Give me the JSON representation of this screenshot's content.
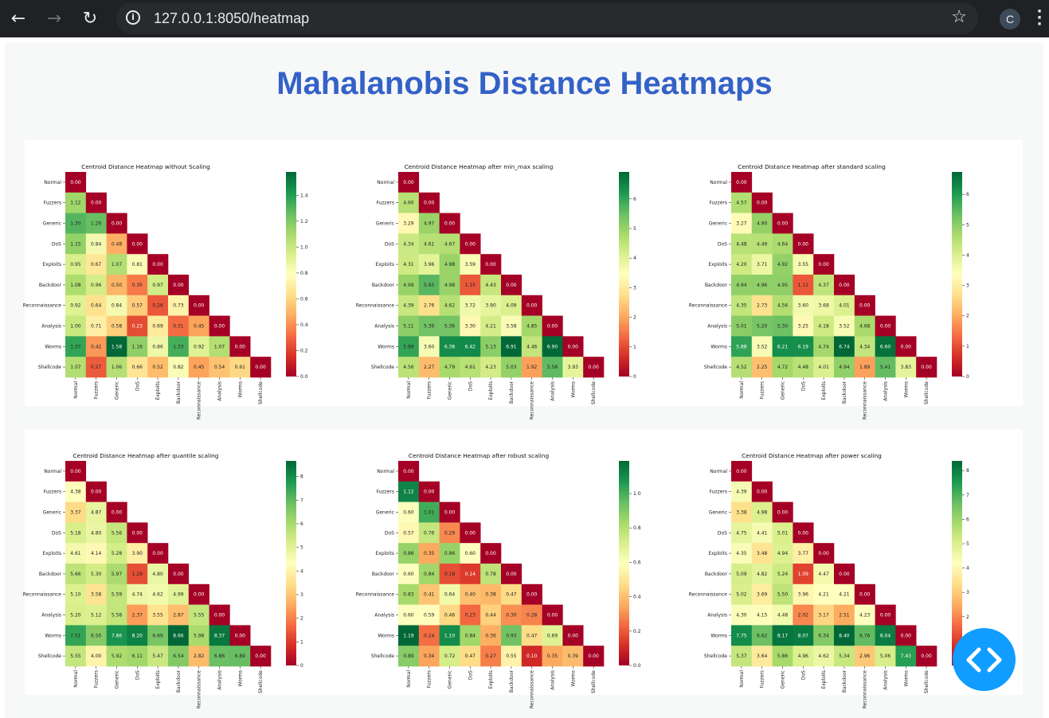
{
  "browser": {
    "url": "127.0.0.1:8050/heatmap",
    "profile_initial": "C",
    "icons": [
      "back-arrow-icon",
      "forward-arrow-icon",
      "reload-icon",
      "info-icon",
      "star-icon",
      "kebab-menu-icon"
    ]
  },
  "page": {
    "title": "Mahalanobis Distance Heatmaps"
  },
  "colors": {
    "title": "#3362c7",
    "fab": "#119dff",
    "low": "#a50026",
    "mid": "#feffbe",
    "high": "#006837"
  },
  "labels": [
    "Normal",
    "Fuzzers",
    "Generic",
    "DoS",
    "Exploits",
    "Backdoor",
    "Reconnaissance",
    "Analysis",
    "Worms",
    "Shellcode"
  ],
  "heatmaps": [
    {
      "title": "Centroid Distance Heatmap without Scaling",
      "vmax": 1.58,
      "ticks": [
        "0.0",
        "0.2",
        "0.4",
        "0.6",
        "0.8",
        "1.0",
        "1.2",
        "1.4"
      ],
      "rows": [
        [
          0.0
        ],
        [
          1.12,
          0.0
        ],
        [
          1.3,
          1.26,
          0.0
        ],
        [
          1.15,
          0.84,
          0.48,
          0.0
        ],
        [
          0.95,
          0.67,
          1.07,
          0.81,
          0.0
        ],
        [
          1.08,
          0.96,
          0.5,
          0.35,
          0.97,
          0.0
        ],
        [
          0.92,
          0.64,
          0.84,
          0.57,
          0.26,
          0.73,
          0.0
        ],
        [
          1.0,
          0.71,
          0.58,
          0.23,
          0.69,
          0.31,
          0.45,
          0.0
        ],
        [
          1.37,
          0.42,
          1.58,
          1.16,
          0.86,
          1.33,
          0.92,
          1.07,
          0.0
        ],
        [
          1.07,
          0.27,
          1.06,
          0.66,
          0.52,
          0.82,
          0.45,
          0.54,
          0.61,
          0.0
        ]
      ]
    },
    {
      "title": "Centroid Distance Heatmap after min_max scaling",
      "vmax": 6.91,
      "ticks": [
        "0",
        "1",
        "2",
        "3",
        "4",
        "5",
        "6"
      ],
      "rows": [
        [
          0.0
        ],
        [
          4.6,
          0.0
        ],
        [
          3.29,
          4.97,
          0.0
        ],
        [
          4.34,
          4.61,
          4.67,
          0.0
        ],
        [
          4.31,
          3.96,
          4.98,
          3.59,
          0.0
        ],
        [
          4.99,
          5.65,
          4.98,
          1.15,
          4.43,
          0.0
        ],
        [
          4.39,
          2.76,
          4.62,
          3.72,
          3.9,
          4.09,
          0.0
        ],
        [
          5.11,
          5.39,
          5.36,
          3.3,
          4.21,
          3.58,
          4.85,
          0.0
        ],
        [
          5.99,
          3.6,
          6.38,
          6.42,
          5.13,
          6.91,
          4.46,
          6.9,
          0.0
        ],
        [
          4.56,
          2.27,
          4.79,
          4.61,
          4.23,
          5.03,
          1.92,
          5.58,
          3.93,
          0.0
        ]
      ]
    },
    {
      "title": "Centroid Distance Heatmap after standard scaling",
      "vmax": 6.74,
      "ticks": [
        "0",
        "1",
        "2",
        "3",
        "4",
        "5",
        "6"
      ],
      "rows": [
        [
          0.0
        ],
        [
          4.57,
          0.0
        ],
        [
          3.27,
          4.9,
          0.0
        ],
        [
          4.48,
          4.49,
          4.64,
          0.0
        ],
        [
          4.2,
          3.71,
          4.92,
          3.55,
          0.0
        ],
        [
          4.94,
          4.96,
          4.95,
          1.11,
          4.37,
          0.0
        ],
        [
          4.35,
          2.73,
          4.56,
          3.6,
          3.68,
          4.01,
          0.0
        ],
        [
          5.01,
          5.2,
          5.3,
          3.25,
          4.18,
          3.52,
          4.68,
          0.0
        ],
        [
          5.88,
          3.52,
          6.21,
          6.19,
          4.74,
          6.74,
          4.34,
          6.6,
          0.0
        ],
        [
          4.52,
          2.25,
          4.72,
          4.48,
          4.01,
          4.94,
          1.89,
          5.41,
          3.83,
          0.0
        ]
      ]
    },
    {
      "title": "Centroid Distance Heatmap after quantile scaling",
      "vmax": 8.66,
      "ticks": [
        "0",
        "1",
        "2",
        "3",
        "4",
        "5",
        "6",
        "7",
        "8"
      ],
      "rows": [
        [
          0.0
        ],
        [
          4.38,
          0.0
        ],
        [
          3.37,
          4.87,
          0.0
        ],
        [
          5.18,
          4.8,
          5.56,
          0.0
        ],
        [
          4.61,
          4.14,
          5.28,
          3.9,
          0.0
        ],
        [
          5.66,
          5.3,
          5.97,
          1.29,
          4.8,
          0.0
        ],
        [
          5.1,
          3.58,
          5.59,
          4.74,
          4.62,
          4.99,
          0.0
        ],
        [
          5.2,
          5.12,
          5.58,
          2.37,
          3.55,
          2.87,
          5.55,
          0.0
        ],
        [
          7.51,
          6.5,
          7.86,
          8.2,
          6.69,
          8.66,
          5.98,
          8.37,
          0.0
        ],
        [
          5.55,
          4.0,
          5.92,
          6.11,
          5.47,
          6.54,
          2.82,
          6.86,
          6.89,
          0.0
        ]
      ]
    },
    {
      "title": "Centroid Distance Heatmap after robust scaling",
      "vmax": 1.19,
      "ticks": [
        "0.0",
        "0.2",
        "0.4",
        "0.6",
        "0.8",
        "1.0"
      ],
      "rows": [
        [
          0.0
        ],
        [
          1.12,
          0.0
        ],
        [
          0.6,
          1.01,
          0.0
        ],
        [
          0.57,
          0.76,
          0.29,
          0.0
        ],
        [
          0.86,
          0.35,
          0.86,
          0.6,
          0.0
        ],
        [
          0.6,
          0.84,
          0.18,
          0.14,
          0.78,
          0.0
        ],
        [
          0.83,
          0.41,
          0.64,
          0.4,
          0.38,
          0.47,
          0.0
        ],
        [
          0.6,
          0.59,
          0.46,
          0.23,
          0.44,
          0.3,
          0.28,
          0.0
        ],
        [
          1.19,
          0.24,
          1.1,
          0.84,
          0.36,
          0.93,
          0.47,
          0.69,
          0.0
        ],
        [
          0.89,
          0.34,
          0.72,
          0.47,
          0.27,
          0.55,
          0.1,
          0.35,
          0.39,
          0.0
        ]
      ]
    },
    {
      "title": "Centroid Distance Heatmap after power scaling",
      "vmax": 8.4,
      "ticks": [
        "0",
        "1",
        "2",
        "3",
        "4",
        "5",
        "6",
        "7",
        "8"
      ],
      "rows": [
        [
          0.0
        ],
        [
          4.39,
          0.0
        ],
        [
          3.38,
          4.98,
          0.0
        ],
        [
          4.75,
          4.41,
          5.01,
          0.0
        ],
        [
          4.35,
          3.48,
          4.94,
          3.77,
          0.0
        ],
        [
          5.09,
          4.82,
          5.24,
          1.09,
          4.47,
          0.0
        ],
        [
          5.02,
          3.69,
          5.5,
          3.96,
          4.21,
          4.21,
          0.0
        ],
        [
          4.3,
          4.15,
          4.48,
          2.02,
          3.17,
          2.51,
          4.23,
          0.0
        ],
        [
          7.75,
          6.62,
          8.17,
          8.07,
          6.34,
          8.4,
          6.76,
          8.04,
          0.0
        ],
        [
          5.37,
          3.64,
          5.86,
          4.96,
          4.62,
          5.34,
          2.96,
          5.06,
          7.43,
          0.0
        ]
      ]
    }
  ]
}
